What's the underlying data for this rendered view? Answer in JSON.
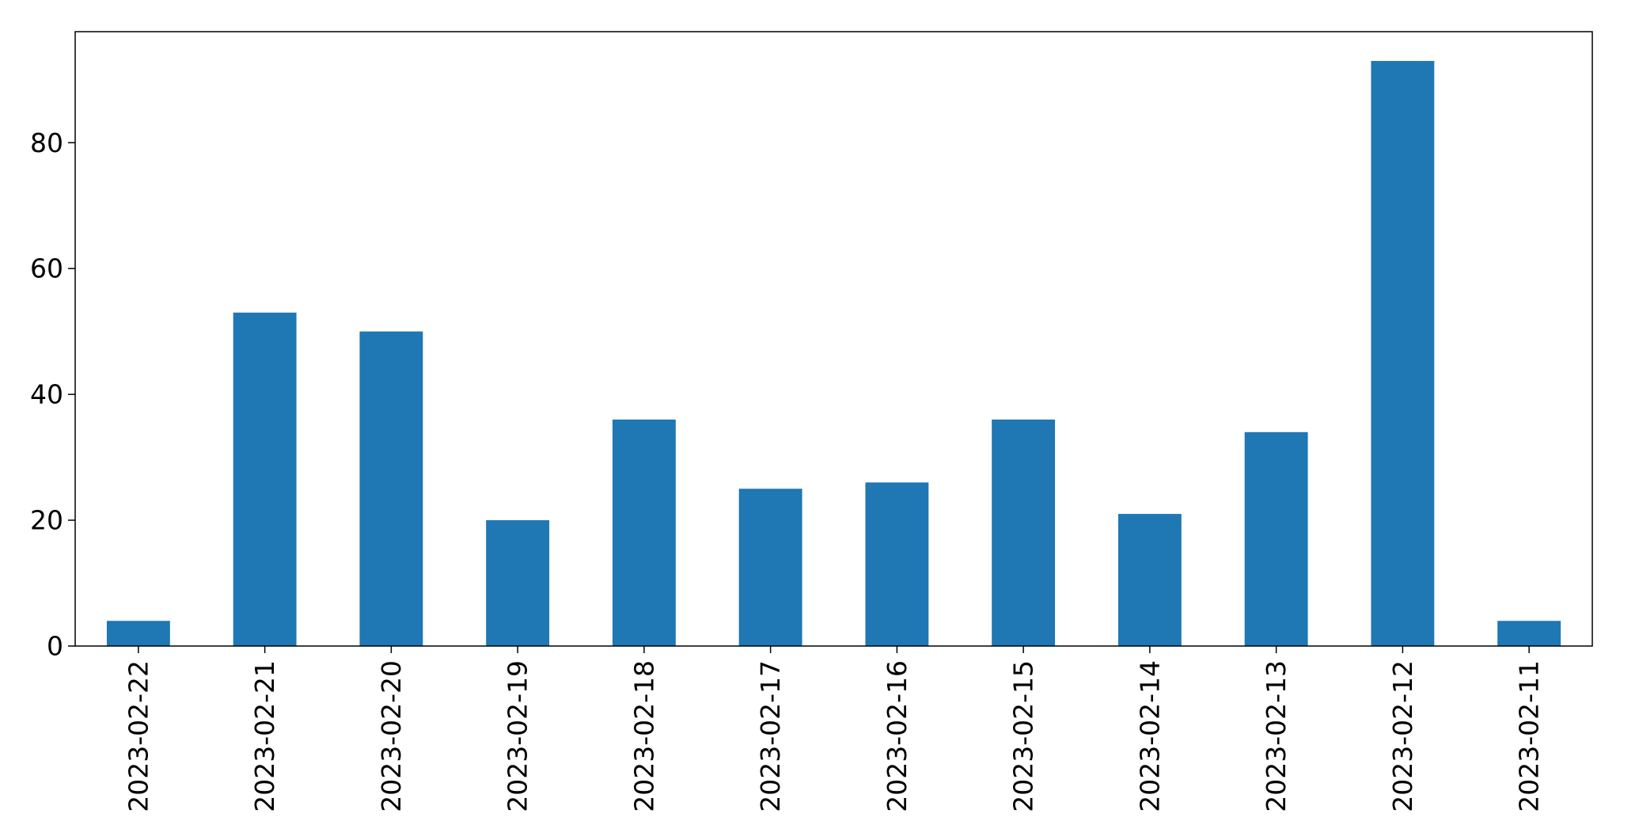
{
  "chart_data": {
    "type": "bar",
    "categories": [
      "2023-02-22",
      "2023-02-21",
      "2023-02-20",
      "2023-02-19",
      "2023-02-18",
      "2023-02-17",
      "2023-02-16",
      "2023-02-15",
      "2023-02-14",
      "2023-02-13",
      "2023-02-12",
      "2023-02-11"
    ],
    "values": [
      4,
      53,
      50,
      20,
      36,
      25,
      26,
      36,
      21,
      34,
      93,
      4
    ],
    "yticks": [
      0,
      20,
      40,
      60,
      80
    ],
    "ylim": [
      0,
      97.65
    ],
    "title": "",
    "xlabel": "",
    "ylabel": "",
    "grid": false,
    "legend": "none",
    "bar_color": "#1f77b4"
  }
}
